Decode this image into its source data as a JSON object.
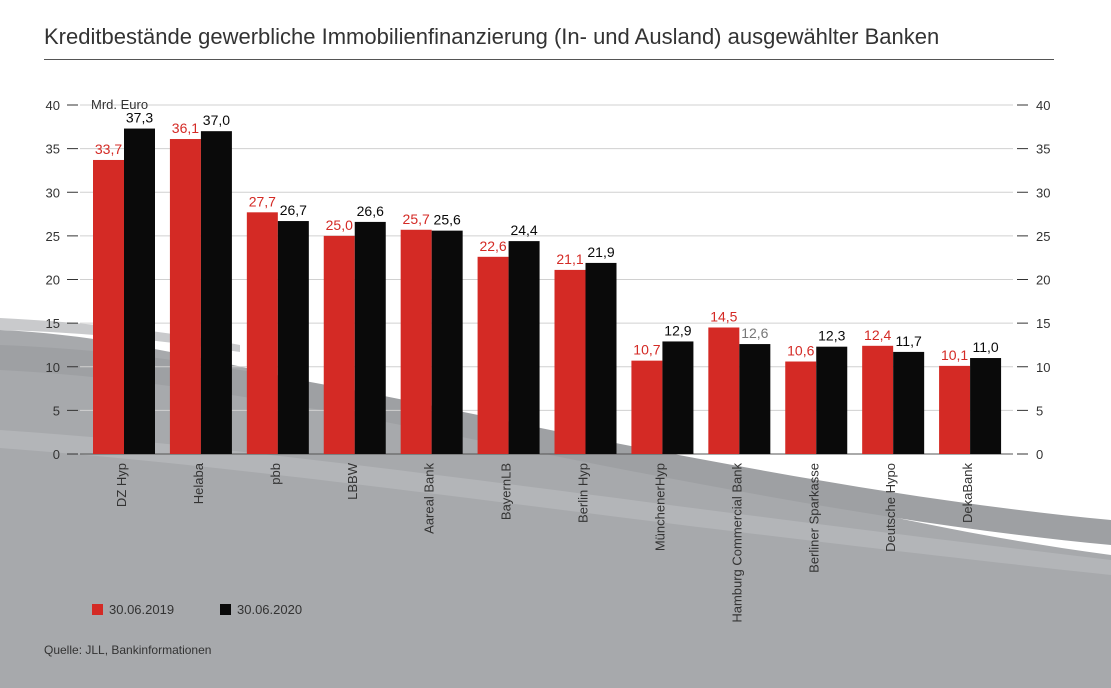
{
  "title": "Kreditbestände gewerbliche Immobilienfinanzierung (In- und Ausland) ausgewählter Banken",
  "unit": "Mrd. Euro",
  "source": "Quelle: JLL, Bankinformationen",
  "colors": {
    "series_2019": "#d42a25",
    "series_2020": "#0a0a0a",
    "label_grey": "#777777"
  },
  "chart_data": {
    "type": "bar",
    "title": "Kreditbestände gewerbliche Immobilienfinanzierung (In- und Ausland) ausgewählter Banken",
    "ylabel": "Mrd. Euro",
    "ylim": [
      0,
      40
    ],
    "yticks": [
      0,
      5,
      10,
      15,
      20,
      25,
      30,
      35,
      40
    ],
    "categories": [
      "DZ Hyp",
      "Helaba",
      "pbb",
      "LBBW",
      "Aareal Bank",
      "BayernLB",
      "Berlin Hyp",
      "MünchenerHyp",
      "Hamburg Commercial Bank",
      "Berliner Sparkasse",
      "Deutsche Hypo",
      "DekaBank"
    ],
    "series": [
      {
        "name": "30.06.2019",
        "values": [
          33.7,
          36.1,
          27.7,
          25.0,
          25.7,
          22.6,
          21.1,
          10.7,
          14.5,
          10.6,
          12.4,
          10.1
        ],
        "labels": [
          "33,7",
          "36,1",
          "27,7",
          "25,0",
          "25,7",
          "22,6",
          "21,1",
          "10,7",
          "14,5",
          "10,6",
          "12,4",
          "10,1"
        ]
      },
      {
        "name": "30.06.2020",
        "values": [
          37.3,
          37.0,
          26.7,
          26.6,
          25.6,
          24.4,
          21.9,
          12.9,
          12.6,
          12.3,
          11.7,
          11.0
        ],
        "labels": [
          "37,3",
          "37,0",
          "26,7",
          "26,6",
          "25,6",
          "24,4",
          "21,9",
          "12,9",
          "12,6",
          "12,3",
          "11,7",
          "11,0"
        ]
      }
    ],
    "grid": true,
    "legend": "bottom-left"
  }
}
